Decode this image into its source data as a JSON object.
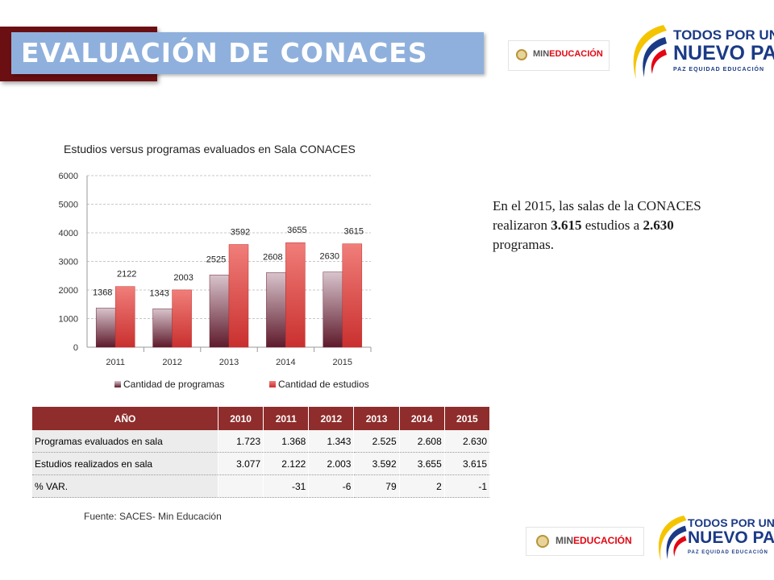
{
  "header": {
    "title": "EVALUACIÓN DE CONACES"
  },
  "logos": {
    "mineducacion": "MINEDUCACIÓN",
    "mineducacion_prefix": "MIN",
    "mineducacion_suffix": "EDUCACIÓN",
    "todos_line1": "TODOS POR UN",
    "todos_line2": "NUEVO PAÍS",
    "todos_line3": "PAZ  EQUIDAD  EDUCACIÓN"
  },
  "chart_data": {
    "type": "bar",
    "title": "Estudios versus programas evaluados en Sala CONACES",
    "categories": [
      "2011",
      "2012",
      "2013",
      "2014",
      "2015"
    ],
    "series": [
      {
        "name": "Cantidad de programas",
        "values": [
          1368,
          1343,
          2525,
          2608,
          2630
        ],
        "color": "#7a2a3a"
      },
      {
        "name": "Cantidad de estudios",
        "values": [
          2122,
          2003,
          3592,
          3655,
          3615
        ],
        "color": "#e8504e"
      }
    ],
    "ylim": [
      0,
      6000
    ],
    "yticks": [
      0,
      1000,
      2000,
      3000,
      4000,
      5000,
      6000
    ],
    "grid": true,
    "legend": "bottom"
  },
  "note": {
    "p1": "En el 2015, las salas de la CONACES realizaron ",
    "b1": "3.615",
    "p2": " estudios a ",
    "b2": "2.630",
    "p3": " programas."
  },
  "table": {
    "headers": [
      "AÑO",
      "2010",
      "2011",
      "2012",
      "2013",
      "2014",
      "2015"
    ],
    "rows": [
      [
        "Programas evaluados en sala",
        "1.723",
        "1.368",
        "1.343",
        "2.525",
        "2.608",
        "2.630"
      ],
      [
        "Estudios realizados en sala",
        "3.077",
        "2.122",
        "2.003",
        "3.592",
        "3.655",
        "3.615"
      ],
      [
        "% VAR.",
        "",
        "-31",
        "-6",
        "79",
        "2",
        "-1"
      ]
    ]
  },
  "source": "Fuente: SACES- Min Educación"
}
